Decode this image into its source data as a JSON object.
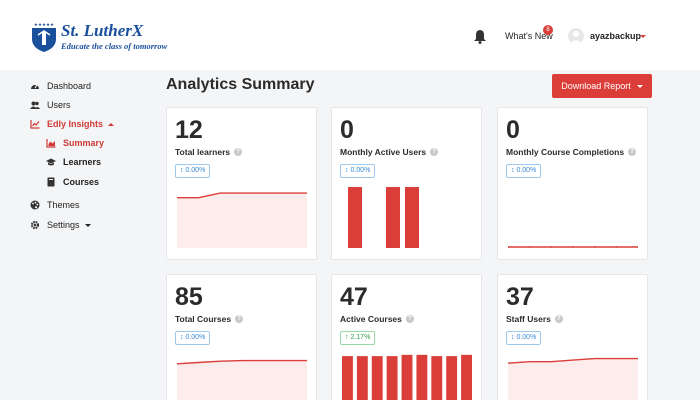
{
  "brand": {
    "name": "St. LutherX",
    "tagline": "Educate the class of tomorrow",
    "color": "#1a4f9c"
  },
  "header": {
    "whats_new": "What's New",
    "notification_count": "8",
    "username": "ayazbackup"
  },
  "sidebar": {
    "dashboard": "Dashboard",
    "users": "Users",
    "insights": "Edly Insights",
    "summary": "Summary",
    "learners": "Learners",
    "courses": "Courses",
    "themes": "Themes",
    "settings": "Settings"
  },
  "main": {
    "title": "Analytics Summary",
    "download_label": "Download Report"
  },
  "accent": "#db3e38",
  "cards": [
    {
      "value": "12",
      "label": "Total learners",
      "change": "0.00%",
      "trend": "flat"
    },
    {
      "value": "0",
      "label": "Monthly Active Users",
      "change": "0.00%",
      "trend": "flat"
    },
    {
      "value": "0",
      "label": "Monthly Course Completions",
      "change": "0.00%",
      "trend": "flat"
    },
    {
      "value": "85",
      "label": "Total Courses",
      "change": "0.00%",
      "trend": "flat"
    },
    {
      "value": "47",
      "label": "Active Courses",
      "change": "2.17%",
      "trend": "up"
    },
    {
      "value": "37",
      "label": "Staff Users",
      "change": "0.00%",
      "trend": "flat"
    }
  ],
  "chart_data": [
    {
      "type": "area",
      "x": [
        1,
        2,
        3,
        4,
        5,
        6,
        7
      ],
      "values": [
        11,
        11,
        12,
        12,
        12,
        12,
        12
      ],
      "ylim": [
        0,
        14
      ]
    },
    {
      "type": "bar",
      "categories": [
        "1",
        "2",
        "3"
      ],
      "values": [
        1,
        1,
        1
      ],
      "ylim": [
        0,
        1.05
      ]
    },
    {
      "type": "line",
      "x": [
        1,
        2,
        3,
        4,
        5,
        6,
        7
      ],
      "values": [
        0,
        0,
        0,
        0,
        0,
        0,
        0
      ],
      "ylim": [
        0,
        1
      ]
    },
    {
      "type": "area",
      "x": [
        1,
        2,
        3,
        4,
        5,
        6,
        7
      ],
      "values": [
        80,
        82,
        84,
        85,
        85,
        85,
        85
      ],
      "ylim": [
        0,
        100
      ]
    },
    {
      "type": "bar",
      "categories": [
        "1",
        "2",
        "3",
        "4",
        "5",
        "6",
        "7",
        "8",
        "9"
      ],
      "values": [
        46,
        46,
        46,
        46,
        47,
        47,
        46,
        46,
        47
      ],
      "ylim": [
        0,
        50
      ]
    },
    {
      "type": "area",
      "x": [
        1,
        2,
        3,
        4,
        5,
        6,
        7
      ],
      "values": [
        34,
        35,
        35,
        36,
        37,
        37,
        37
      ],
      "ylim": [
        0,
        42
      ]
    }
  ]
}
